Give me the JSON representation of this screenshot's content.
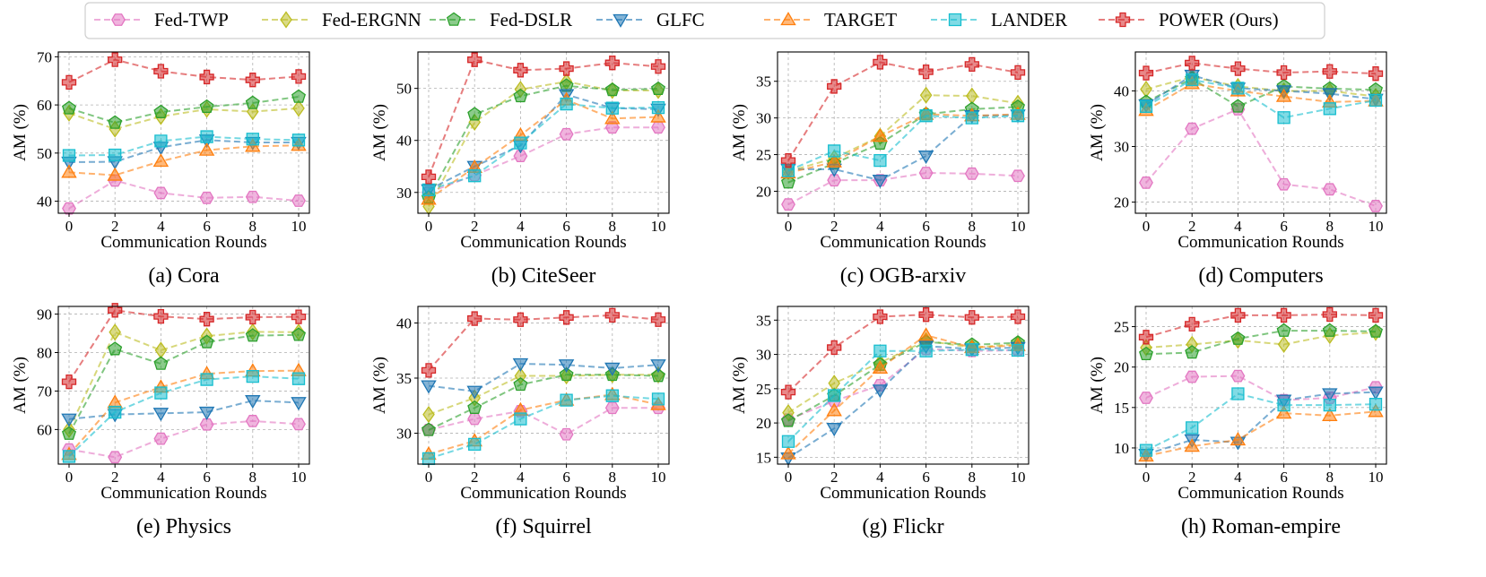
{
  "legend": [
    {
      "name": "Fed-TWP",
      "color": "#e377c2",
      "marker": "hexagon"
    },
    {
      "name": "Fed-ERGNN",
      "color": "#bcbd22",
      "marker": "diamond"
    },
    {
      "name": "Fed-DSLR",
      "color": "#2ca02c",
      "marker": "pentagon"
    },
    {
      "name": "GLFC",
      "color": "#1f77b4",
      "marker": "triangle-down"
    },
    {
      "name": "TARGET",
      "color": "#ff7f0e",
      "marker": "triangle-up"
    },
    {
      "name": "LANDER",
      "color": "#17becf",
      "marker": "square"
    },
    {
      "name": "POWER (Ours)",
      "color": "#d62728",
      "marker": "plus"
    }
  ],
  "chart_data": [
    {
      "type": "line",
      "caption": "(a) Cora",
      "xlabel": "Communication Rounds",
      "ylabel": "AM (%)",
      "x": [
        0,
        2,
        4,
        6,
        8,
        10
      ],
      "xticks": [
        0,
        2,
        4,
        6,
        8,
        10
      ],
      "ylim": [
        37.5,
        71
      ],
      "yticks": [
        40,
        50,
        60,
        70
      ],
      "grid": true,
      "series": [
        {
          "name": "Fed-TWP",
          "values": [
            38.5,
            44.3,
            41.7,
            40.7,
            40.9,
            40.1
          ]
        },
        {
          "name": "Fed-ERGNN",
          "values": [
            58.3,
            55.0,
            57.6,
            59.1,
            58.6,
            59.3
          ]
        },
        {
          "name": "Fed-DSLR",
          "values": [
            59.3,
            56.3,
            58.5,
            59.6,
            60.4,
            61.7
          ]
        },
        {
          "name": "GLFC",
          "values": [
            48.1,
            48.2,
            51.2,
            52.7,
            52.2,
            52.2
          ]
        },
        {
          "name": "TARGET",
          "values": [
            46.0,
            45.4,
            48.3,
            50.6,
            51.4,
            51.6
          ]
        },
        {
          "name": "LANDER",
          "values": [
            49.5,
            49.6,
            52.5,
            53.4,
            52.9,
            52.7
          ]
        },
        {
          "name": "POWER (Ours)",
          "values": [
            64.7,
            69.4,
            67.0,
            65.8,
            65.2,
            65.9
          ]
        }
      ]
    },
    {
      "type": "line",
      "caption": "(b) CiteSeer",
      "xlabel": "Communication Rounds",
      "ylabel": "AM (%)",
      "x": [
        0,
        2,
        4,
        6,
        8,
        10
      ],
      "xticks": [
        0,
        2,
        4,
        6,
        8,
        10
      ],
      "ylim": [
        26,
        57
      ],
      "yticks": [
        30,
        40,
        50
      ],
      "grid": true,
      "series": [
        {
          "name": "Fed-TWP",
          "values": [
            30.0,
            33.3,
            37.0,
            41.2,
            42.5,
            42.5
          ]
        },
        {
          "name": "Fed-ERGNN",
          "values": [
            27.3,
            43.5,
            49.8,
            51.3,
            49.6,
            49.6
          ]
        },
        {
          "name": "Fed-DSLR",
          "values": [
            29.0,
            45.0,
            48.5,
            50.5,
            49.7,
            49.9
          ]
        },
        {
          "name": "GLFC",
          "values": [
            30.5,
            35.0,
            39.0,
            48.8,
            46.2,
            46.0
          ]
        },
        {
          "name": "TARGET",
          "values": [
            28.7,
            34.8,
            41.0,
            47.8,
            44.2,
            44.5
          ]
        },
        {
          "name": "LANDER",
          "values": [
            30.5,
            33.2,
            39.5,
            47.0,
            46.2,
            46.3
          ]
        },
        {
          "name": "POWER (Ours)",
          "values": [
            33.0,
            55.5,
            53.5,
            53.8,
            54.9,
            54.2
          ]
        }
      ]
    },
    {
      "type": "line",
      "caption": "(c) OGB-arxiv",
      "xlabel": "Communication Rounds",
      "ylabel": "AM (%)",
      "x": [
        0,
        2,
        4,
        6,
        8,
        10
      ],
      "xticks": [
        0,
        2,
        4,
        6,
        8,
        10
      ],
      "ylim": [
        17,
        39
      ],
      "yticks": [
        20,
        25,
        30,
        35
      ],
      "grid": true,
      "series": [
        {
          "name": "Fed-TWP",
          "values": [
            18.2,
            21.5,
            21.5,
            22.5,
            22.4,
            22.1
          ]
        },
        {
          "name": "Fed-ERGNN",
          "values": [
            22.7,
            24.5,
            27.5,
            33.1,
            33.0,
            32.0
          ]
        },
        {
          "name": "Fed-DSLR",
          "values": [
            21.2,
            23.8,
            26.5,
            30.5,
            31.2,
            31.5
          ]
        },
        {
          "name": "GLFC",
          "values": [
            23.0,
            23.0,
            21.5,
            24.8,
            30.3,
            30.4
          ]
        },
        {
          "name": "TARGET",
          "values": [
            22.5,
            24.0,
            27.5,
            30.5,
            30.3,
            30.5
          ]
        },
        {
          "name": "LANDER",
          "values": [
            22.8,
            25.5,
            24.2,
            30.3,
            30.0,
            30.3
          ]
        },
        {
          "name": "POWER (Ours)",
          "values": [
            24.2,
            34.3,
            37.6,
            36.3,
            37.3,
            36.2
          ]
        }
      ]
    },
    {
      "type": "line",
      "caption": "(d) Computers",
      "xlabel": "Communication Rounds",
      "ylabel": "AM (%)",
      "x": [
        0,
        2,
        4,
        6,
        8,
        10
      ],
      "xticks": [
        0,
        2,
        4,
        6,
        8,
        10
      ],
      "ylim": [
        18,
        47
      ],
      "yticks": [
        20,
        30,
        40
      ],
      "grid": true,
      "series": [
        {
          "name": "Fed-TWP",
          "values": [
            23.5,
            33.2,
            36.7,
            23.2,
            22.3,
            19.3
          ]
        },
        {
          "name": "Fed-ERGNN",
          "values": [
            40.3,
            42.5,
            40.8,
            40.0,
            40.0,
            39.0
          ]
        },
        {
          "name": "Fed-DSLR",
          "values": [
            38.0,
            42.2,
            37.2,
            40.8,
            40.4,
            40.2
          ]
        },
        {
          "name": "GLFC",
          "values": [
            37.5,
            42.8,
            40.5,
            40.0,
            39.5,
            38.5
          ]
        },
        {
          "name": "TARGET",
          "values": [
            36.5,
            41.3,
            40.0,
            39.0,
            38.0,
            38.2
          ]
        },
        {
          "name": "LANDER",
          "values": [
            37.2,
            42.0,
            40.5,
            35.2,
            36.8,
            38.3
          ]
        },
        {
          "name": "POWER (Ours)",
          "values": [
            43.2,
            45.0,
            44.0,
            43.3,
            43.5,
            43.1
          ]
        }
      ]
    },
    {
      "type": "line",
      "caption": "(e) Physics",
      "xlabel": "Communication Rounds",
      "ylabel": "AM (%)",
      "x": [
        0,
        2,
        4,
        6,
        8,
        10
      ],
      "xticks": [
        0,
        2,
        4,
        6,
        8,
        10
      ],
      "ylim": [
        51,
        92
      ],
      "yticks": [
        60,
        70,
        80,
        90
      ],
      "grid": true,
      "series": [
        {
          "name": "Fed-TWP",
          "values": [
            54.8,
            52.8,
            57.6,
            61.3,
            62.2,
            61.4
          ]
        },
        {
          "name": "Fed-ERGNN",
          "values": [
            60.0,
            85.3,
            80.6,
            84.3,
            85.4,
            85.3
          ]
        },
        {
          "name": "Fed-DSLR",
          "values": [
            58.9,
            80.9,
            77.1,
            82.7,
            84.4,
            84.6
          ]
        },
        {
          "name": "GLFC",
          "values": [
            62.7,
            63.9,
            64.2,
            64.5,
            67.5,
            67.0
          ]
        },
        {
          "name": "TARGET",
          "values": [
            53.5,
            67.0,
            71.0,
            74.5,
            75.2,
            75.3
          ]
        },
        {
          "name": "LANDER",
          "values": [
            53.0,
            64.5,
            69.5,
            73.0,
            73.8,
            73.2
          ]
        },
        {
          "name": "POWER (Ours)",
          "values": [
            72.4,
            91.0,
            89.4,
            88.7,
            89.2,
            89.3
          ]
        }
      ]
    },
    {
      "type": "line",
      "caption": "(f) Squirrel",
      "xlabel": "Communication Rounds",
      "ylabel": "AM (%)",
      "x": [
        0,
        2,
        4,
        6,
        8,
        10
      ],
      "xticks": [
        0,
        2,
        4,
        6,
        8,
        10
      ],
      "ylim": [
        27.2,
        41.5
      ],
      "yticks": [
        30,
        35,
        40
      ],
      "grid": true,
      "series": [
        {
          "name": "Fed-TWP",
          "values": [
            30.3,
            31.3,
            32.0,
            29.9,
            32.3,
            32.3
          ]
        },
        {
          "name": "Fed-ERGNN",
          "values": [
            31.7,
            33.2,
            35.2,
            35.2,
            35.3,
            35.3
          ]
        },
        {
          "name": "Fed-DSLR",
          "values": [
            30.3,
            32.3,
            34.4,
            35.3,
            35.3,
            35.2
          ]
        },
        {
          "name": "GLFC",
          "values": [
            34.3,
            33.8,
            36.3,
            36.2,
            35.9,
            36.2
          ]
        },
        {
          "name": "TARGET",
          "values": [
            28.1,
            29.3,
            32.1,
            33.0,
            33.5,
            32.6
          ]
        },
        {
          "name": "LANDER",
          "values": [
            27.7,
            29.0,
            31.3,
            33.0,
            33.4,
            33.1
          ]
        },
        {
          "name": "POWER (Ours)",
          "values": [
            35.7,
            40.4,
            40.3,
            40.5,
            40.7,
            40.3
          ]
        }
      ]
    },
    {
      "type": "line",
      "caption": "(g) Flickr",
      "xlabel": "Communication Rounds",
      "ylabel": "AM (%)",
      "x": [
        0,
        2,
        4,
        6,
        8,
        10
      ],
      "xticks": [
        0,
        2,
        4,
        6,
        8,
        10
      ],
      "ylim": [
        14,
        37
      ],
      "yticks": [
        15,
        20,
        25,
        30,
        35
      ],
      "grid": true,
      "series": [
        {
          "name": "Fed-TWP",
          "values": [
            20.5,
            23.2,
            25.5,
            30.8,
            30.5,
            30.6
          ]
        },
        {
          "name": "Fed-ERGNN",
          "values": [
            21.5,
            25.8,
            28.8,
            32.0,
            31.0,
            31.5
          ]
        },
        {
          "name": "Fed-DSLR",
          "values": [
            20.3,
            24.0,
            28.5,
            31.8,
            31.4,
            31.7
          ]
        },
        {
          "name": "GLFC",
          "values": [
            14.9,
            19.2,
            24.8,
            31.2,
            30.8,
            31.0
          ]
        },
        {
          "name": "TARGET",
          "values": [
            15.5,
            21.8,
            28.0,
            32.8,
            31.0,
            31.3
          ]
        },
        {
          "name": "LANDER",
          "values": [
            17.3,
            24.0,
            30.5,
            30.5,
            30.7,
            30.6
          ]
        },
        {
          "name": "POWER (Ours)",
          "values": [
            24.5,
            31.0,
            35.5,
            35.8,
            35.4,
            35.5
          ]
        }
      ]
    },
    {
      "type": "line",
      "caption": "(h) Roman-empire",
      "xlabel": "Communication Rounds",
      "ylabel": "AM (%)",
      "x": [
        0,
        2,
        4,
        6,
        8,
        10
      ],
      "xticks": [
        0,
        2,
        4,
        6,
        8,
        10
      ],
      "ylim": [
        8,
        27.5
      ],
      "yticks": [
        10,
        15,
        20,
        25
      ],
      "grid": true,
      "series": [
        {
          "name": "Fed-TWP",
          "values": [
            16.2,
            18.8,
            18.9,
            15.9,
            16.2,
            17.5
          ]
        },
        {
          "name": "Fed-ERGNN",
          "values": [
            22.4,
            22.8,
            23.3,
            22.8,
            23.9,
            24.3
          ]
        },
        {
          "name": "Fed-DSLR",
          "values": [
            21.6,
            21.8,
            23.5,
            24.5,
            24.5,
            24.4
          ]
        },
        {
          "name": "GLFC",
          "values": [
            9.2,
            11.0,
            10.7,
            15.9,
            16.7,
            16.9
          ]
        },
        {
          "name": "TARGET",
          "values": [
            9.0,
            10.2,
            11.0,
            14.3,
            14.0,
            14.5
          ]
        },
        {
          "name": "LANDER",
          "values": [
            9.7,
            12.5,
            16.7,
            15.3,
            15.3,
            15.4
          ]
        },
        {
          "name": "POWER (Ours)",
          "values": [
            23.7,
            25.3,
            26.4,
            26.4,
            26.5,
            26.4
          ]
        }
      ]
    }
  ]
}
